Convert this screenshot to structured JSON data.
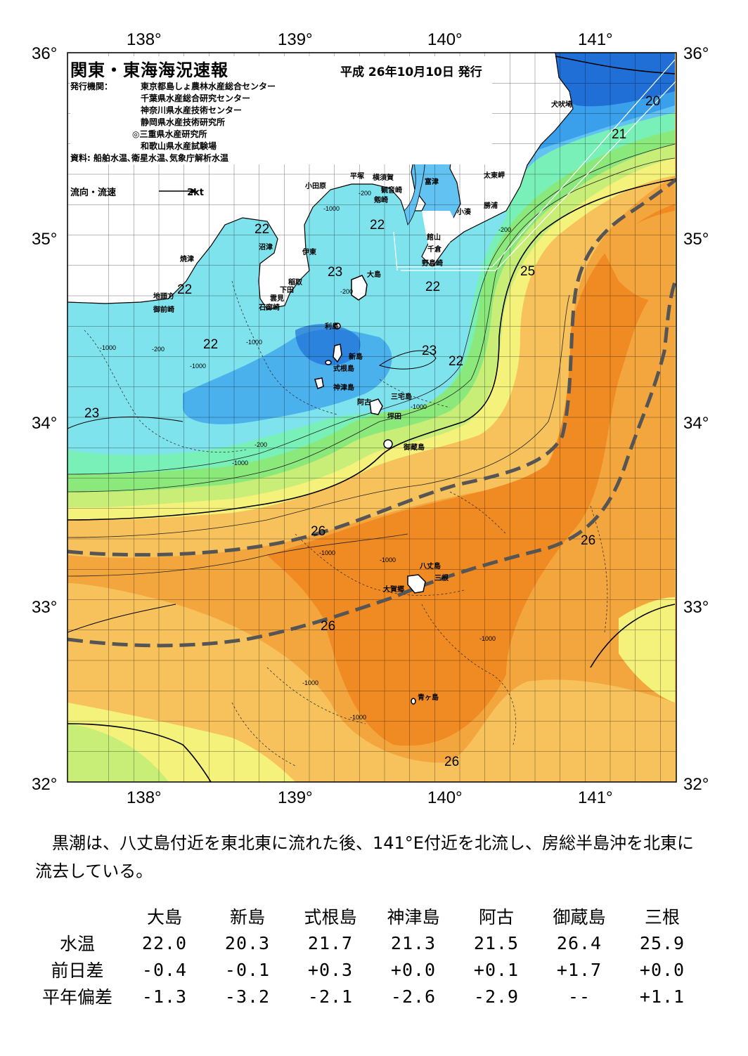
{
  "header": {
    "title": "関東・東海海況速報",
    "issue_date": "平成 26年10月10日 発行",
    "issuer_label": "発行機関：",
    "issuers": [
      "東京都島しょ農林水産総合センター",
      "千葉県水産総合研究センター",
      "神奈川県水産技術センター",
      "静岡県水産技術研究所",
      "◎三重県水産研究所",
      "和歌山県水産試験場"
    ],
    "sources": "資料: 船舶水温､衛星水温､気象庁解析水温",
    "current_legend": "流向・流速",
    "current_scale": "2kt"
  },
  "map": {
    "lon_labels": [
      "138°",
      "139°",
      "140°",
      "141°"
    ],
    "lat_labels": [
      "36°",
      "35°",
      "34°",
      "33°",
      "32°"
    ],
    "place_labels": [
      "犬吠埼",
      "太東岬",
      "勝浦",
      "小湊",
      "富津",
      "館山",
      "千倉",
      "野島崎",
      "横須賀",
      "平塚",
      "観音崎",
      "剱崎",
      "小田原",
      "沼津",
      "伊東",
      "稲取",
      "下田",
      "雲見",
      "石廊崎",
      "焼津",
      "地頭方",
      "御前崎",
      "大島",
      "利島",
      "新島",
      "式根島",
      "神津島",
      "阿古",
      "三宅島",
      "坪田",
      "御蔵島",
      "八丈島",
      "三根",
      "大賀郷",
      "青ヶ島"
    ],
    "isotherm_labels": [
      "22",
      "22",
      "22",
      "23",
      "22",
      "23",
      "22",
      "22",
      "23",
      "25",
      "21",
      "20",
      "26",
      "26",
      "26",
      "26"
    ],
    "depth_labels": [
      "-200",
      "-1000",
      "-200",
      "-1000",
      "-200",
      "-1000",
      "-1000",
      "-200",
      "-1000",
      "-1000",
      "-1000",
      "-1000",
      "-1000",
      "-1000",
      "-1000",
      "-200"
    ],
    "colors": {
      "deep_blue": "#1f6fd6",
      "blue": "#3aa0ec",
      "light_blue": "#62c3f2",
      "cyan": "#7fe3ee",
      "aqua_green": "#78f0b8",
      "green": "#8be87a",
      "yellow_green": "#c8ee78",
      "yellow": "#f4f27a",
      "light_orange": "#f7c25c",
      "orange": "#f4a63e",
      "deep_orange": "#f08a22",
      "kuroshio_path": "#555555"
    }
  },
  "summary": "　黒潮は、八丈島付近を東北東に流れた後、141°E付近を北流し、房総半島沖を北東に流去している。",
  "observations": {
    "stations": [
      "大島",
      "新島",
      "式根島",
      "神津島",
      "阿古",
      "御蔵島",
      "三根"
    ],
    "rows": [
      {
        "label": "水温",
        "values": [
          "22.0",
          "20.3",
          "21.7",
          "21.3",
          "21.5",
          "26.4",
          "25.9"
        ]
      },
      {
        "label": "前日差",
        "values": [
          "-0.4",
          "-0.1",
          "+0.3",
          "+0.0",
          "+0.1",
          "+1.7",
          "+0.0"
        ]
      },
      {
        "label": "平年偏差",
        "values": [
          "-1.3",
          "-3.2",
          "-2.1",
          "-2.6",
          "-2.9",
          "--",
          "+1.1"
        ]
      }
    ]
  }
}
